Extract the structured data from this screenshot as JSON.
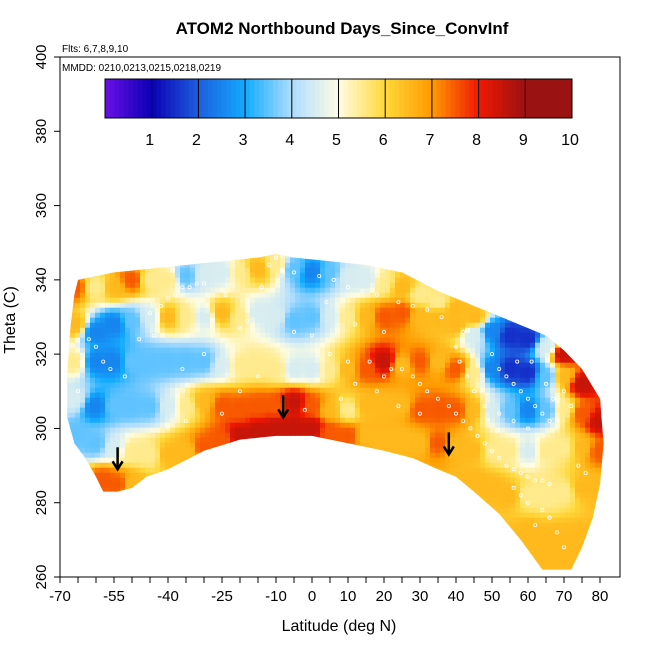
{
  "chart_data": {
    "type": "heatmap",
    "title": "ATOM2 Northbound Days_Since_ConvInf",
    "flights_note": "Flts: 6,7,8,9,10",
    "dates_note": "MMDD: 0210,0213,0215,0218,0219",
    "xlabel": "Latitude (deg N)",
    "ylabel": "Theta (C)",
    "xlim": [
      -70,
      80
    ],
    "ylim": [
      260,
      400
    ],
    "x_ticks": [
      -70,
      -55,
      -40,
      -25,
      -10,
      0,
      10,
      20,
      30,
      40,
      50,
      60,
      70,
      80
    ],
    "x_tick_labels": [
      "-70",
      "-55",
      "-40",
      "-25",
      "-10",
      "0",
      "10",
      "20",
      "30",
      "40",
      "50",
      "60",
      "70",
      "80"
    ],
    "x_minor_ticks": [
      -65,
      -60,
      -50,
      -45,
      -35,
      -30,
      -20,
      -15,
      -5,
      5,
      15,
      25,
      35,
      45,
      55,
      65,
      75
    ],
    "y_ticks": [
      260,
      280,
      300,
      320,
      340,
      360,
      380,
      400
    ],
    "y_tick_labels": [
      "260",
      "280",
      "300",
      "320",
      "340",
      "360",
      "380",
      "400"
    ],
    "colorbar": {
      "range": [
        0,
        10
      ],
      "ticks": [
        1,
        2,
        3,
        4,
        5,
        6,
        7,
        8,
        9,
        10
      ],
      "tick_labels": [
        "1",
        "2",
        "3",
        "4",
        "5",
        "6",
        "7",
        "8",
        "9",
        "10"
      ],
      "colors": [
        "#6a0fe6",
        "#0a00b4",
        "#1d5fde",
        "#12aaff",
        "#aedcff",
        "#fffde2",
        "#ffd83a",
        "#ff9a00",
        "#f01800",
        "#9b1212"
      ]
    },
    "arrows_latitude_theta": [
      [
        -54,
        289
      ],
      [
        -8,
        303
      ],
      [
        38,
        293
      ]
    ],
    "domain_outline": [
      [
        -65,
        340
      ],
      [
        -55,
        342
      ],
      [
        -45,
        343
      ],
      [
        -35,
        344
      ],
      [
        -25,
        345
      ],
      [
        -15,
        346
      ],
      [
        -10,
        347
      ],
      [
        -5,
        346
      ],
      [
        5,
        345
      ],
      [
        15,
        344
      ],
      [
        25,
        342
      ],
      [
        35,
        337
      ],
      [
        45,
        333
      ],
      [
        50,
        331
      ],
      [
        55,
        329
      ],
      [
        60,
        327
      ],
      [
        65,
        325
      ],
      [
        70,
        321
      ],
      [
        75,
        316
      ],
      [
        80,
        308
      ],
      [
        81,
        296
      ],
      [
        80,
        285
      ],
      [
        78,
        276
      ],
      [
        75,
        268
      ],
      [
        72,
        262
      ],
      [
        64,
        262
      ],
      [
        58,
        270
      ],
      [
        52,
        277
      ],
      [
        45,
        283
      ],
      [
        40,
        287
      ],
      [
        35,
        289
      ],
      [
        28,
        292
      ],
      [
        20,
        294
      ],
      [
        10,
        296
      ],
      [
        0,
        298
      ],
      [
        -10,
        298
      ],
      [
        -20,
        297
      ],
      [
        -30,
        294
      ],
      [
        -40,
        289
      ],
      [
        -46,
        287
      ],
      [
        -50,
        284
      ],
      [
        -54,
        283
      ],
      [
        -58,
        283
      ],
      [
        -60,
        287
      ],
      [
        -63,
        292
      ],
      [
        -66,
        296
      ],
      [
        -68,
        303
      ],
      [
        -68,
        315
      ],
      [
        -67,
        328
      ],
      [
        -66,
        336
      ]
    ],
    "value_field_nodes": [
      [
        -66,
        338,
        8
      ],
      [
        -60,
        338,
        6
      ],
      [
        -55,
        338,
        7
      ],
      [
        -50,
        340,
        8
      ],
      [
        -45,
        340,
        6
      ],
      [
        -40,
        340,
        6
      ],
      [
        -35,
        341,
        4
      ],
      [
        -30,
        341,
        5
      ],
      [
        -25,
        342,
        5
      ],
      [
        -20,
        342,
        6
      ],
      [
        -15,
        343,
        7
      ],
      [
        -10,
        344,
        6
      ],
      [
        -5,
        343,
        4
      ],
      [
        0,
        342,
        3
      ],
      [
        5,
        342,
        4
      ],
      [
        10,
        341,
        5
      ],
      [
        15,
        340,
        5
      ],
      [
        20,
        339,
        6
      ],
      [
        25,
        338,
        7
      ],
      [
        30,
        336,
        6
      ],
      [
        35,
        334,
        6
      ],
      [
        40,
        332,
        7
      ],
      [
        45,
        330,
        7
      ],
      [
        -66,
        328,
        7
      ],
      [
        -60,
        326,
        3
      ],
      [
        -55,
        328,
        3
      ],
      [
        -50,
        329,
        4
      ],
      [
        -45,
        330,
        5
      ],
      [
        -40,
        330,
        7
      ],
      [
        -35,
        330,
        6
      ],
      [
        -30,
        330,
        5
      ],
      [
        -25,
        331,
        7
      ],
      [
        -20,
        330,
        6
      ],
      [
        -15,
        331,
        5
      ],
      [
        -10,
        330,
        5
      ],
      [
        -5,
        329,
        4
      ],
      [
        0,
        330,
        4
      ],
      [
        5,
        330,
        5
      ],
      [
        10,
        330,
        6
      ],
      [
        15,
        330,
        7
      ],
      [
        20,
        330,
        8
      ],
      [
        25,
        331,
        8
      ],
      [
        30,
        330,
        7
      ],
      [
        35,
        330,
        7
      ],
      [
        40,
        328,
        7
      ],
      [
        45,
        325,
        5
      ],
      [
        50,
        326,
        3
      ],
      [
        55,
        325,
        2
      ],
      [
        60,
        324,
        2
      ],
      [
        65,
        322,
        5
      ],
      [
        70,
        320,
        9
      ],
      [
        -66,
        318,
        6
      ],
      [
        -60,
        318,
        3
      ],
      [
        -55,
        318,
        3
      ],
      [
        -50,
        318,
        4
      ],
      [
        -45,
        318,
        4
      ],
      [
        -40,
        318,
        4
      ],
      [
        -35,
        318,
        4
      ],
      [
        -30,
        318,
        4
      ],
      [
        -25,
        317,
        5
      ],
      [
        -20,
        317,
        6
      ],
      [
        -15,
        317,
        6
      ],
      [
        -10,
        316,
        6
      ],
      [
        -5,
        316,
        5
      ],
      [
        0,
        316,
        5
      ],
      [
        5,
        316,
        6
      ],
      [
        10,
        316,
        7
      ],
      [
        15,
        316,
        8
      ],
      [
        20,
        318,
        9
      ],
      [
        25,
        317,
        7
      ],
      [
        30,
        318,
        8
      ],
      [
        35,
        318,
        7
      ],
      [
        40,
        316,
        8
      ],
      [
        45,
        315,
        6
      ],
      [
        50,
        316,
        3
      ],
      [
        55,
        316,
        2
      ],
      [
        60,
        315,
        2
      ],
      [
        65,
        314,
        4
      ],
      [
        70,
        314,
        7
      ],
      [
        75,
        312,
        9
      ],
      [
        -66,
        308,
        5
      ],
      [
        -60,
        306,
        3
      ],
      [
        -55,
        306,
        4
      ],
      [
        -50,
        306,
        4
      ],
      [
        -45,
        306,
        4
      ],
      [
        -40,
        306,
        5
      ],
      [
        -35,
        306,
        6
      ],
      [
        -30,
        307,
        7
      ],
      [
        -25,
        306,
        8
      ],
      [
        -20,
        305,
        8
      ],
      [
        -15,
        306,
        8
      ],
      [
        -10,
        306,
        8
      ],
      [
        -5,
        307,
        9
      ],
      [
        0,
        306,
        8
      ],
      [
        5,
        305,
        7
      ],
      [
        10,
        305,
        6
      ],
      [
        15,
        306,
        7
      ],
      [
        20,
        306,
        7
      ],
      [
        25,
        306,
        7
      ],
      [
        30,
        305,
        8
      ],
      [
        35,
        305,
        8
      ],
      [
        40,
        305,
        8
      ],
      [
        45,
        305,
        7
      ],
      [
        50,
        305,
        5
      ],
      [
        55,
        305,
        4
      ],
      [
        60,
        305,
        3
      ],
      [
        65,
        305,
        4
      ],
      [
        70,
        305,
        6
      ],
      [
        75,
        304,
        8
      ],
      [
        80,
        302,
        9
      ],
      [
        -66,
        298,
        4
      ],
      [
        -60,
        296,
        4
      ],
      [
        -55,
        295,
        5
      ],
      [
        -50,
        294,
        6
      ],
      [
        -45,
        293,
        6
      ],
      [
        -40,
        293,
        7
      ],
      [
        -35,
        294,
        7
      ],
      [
        -30,
        295,
        8
      ],
      [
        -25,
        297,
        8
      ],
      [
        -20,
        298,
        9
      ],
      [
        -15,
        299,
        9
      ],
      [
        -10,
        300,
        9
      ],
      [
        -5,
        300,
        9
      ],
      [
        0,
        300,
        9
      ],
      [
        5,
        299,
        8
      ],
      [
        10,
        298,
        8
      ],
      [
        15,
        298,
        7
      ],
      [
        20,
        297,
        7
      ],
      [
        25,
        297,
        7
      ],
      [
        30,
        296,
        7
      ],
      [
        35,
        296,
        8
      ],
      [
        40,
        295,
        7
      ],
      [
        45,
        294,
        7
      ],
      [
        50,
        294,
        6
      ],
      [
        55,
        294,
        6
      ],
      [
        60,
        294,
        5
      ],
      [
        65,
        294,
        6
      ],
      [
        70,
        295,
        6
      ],
      [
        75,
        295,
        7
      ],
      [
        80,
        294,
        8
      ],
      [
        -58,
        286,
        8
      ],
      [
        -54,
        285,
        8
      ],
      [
        -50,
        285,
        7
      ],
      [
        45,
        286,
        7
      ],
      [
        50,
        284,
        7
      ],
      [
        55,
        282,
        7
      ],
      [
        60,
        282,
        6
      ],
      [
        65,
        282,
        6
      ],
      [
        70,
        283,
        6
      ],
      [
        75,
        284,
        7
      ],
      [
        79,
        284,
        7
      ],
      [
        60,
        272,
        7
      ],
      [
        65,
        270,
        7
      ],
      [
        70,
        270,
        7
      ],
      [
        75,
        270,
        7
      ],
      [
        66,
        264,
        7
      ],
      [
        72,
        264,
        7
      ]
    ],
    "flight_samples": [
      [
        -45,
        331
      ],
      [
        -42,
        333
      ],
      [
        -40,
        335
      ],
      [
        -38,
        336
      ],
      [
        -36,
        338
      ],
      [
        -34,
        338
      ],
      [
        -32,
        339
      ],
      [
        -30,
        339
      ],
      [
        -60,
        322
      ],
      [
        -58,
        318
      ],
      [
        -56,
        316
      ],
      [
        -52,
        314
      ],
      [
        -48,
        324
      ],
      [
        -44,
        325
      ],
      [
        -10,
        346
      ],
      [
        -12,
        344
      ],
      [
        -8,
        342
      ],
      [
        -5,
        342
      ],
      [
        2,
        341
      ],
      [
        6,
        340
      ],
      [
        10,
        338
      ],
      [
        14,
        337
      ],
      [
        18,
        336
      ],
      [
        -18,
        329
      ],
      [
        -20,
        327
      ],
      [
        -5,
        326
      ],
      [
        0,
        325
      ],
      [
        5,
        320
      ],
      [
        10,
        318
      ],
      [
        16,
        318
      ],
      [
        20,
        314
      ],
      [
        22,
        316
      ],
      [
        25,
        316
      ],
      [
        28,
        314
      ],
      [
        30,
        312
      ],
      [
        32,
        310
      ],
      [
        35,
        308
      ],
      [
        38,
        306
      ],
      [
        40,
        304
      ],
      [
        42,
        302
      ],
      [
        44,
        300
      ],
      [
        46,
        298
      ],
      [
        48,
        296
      ],
      [
        50,
        294
      ],
      [
        52,
        292
      ],
      [
        54,
        290
      ],
      [
        56,
        289
      ],
      [
        58,
        288
      ],
      [
        60,
        287
      ],
      [
        62,
        286
      ],
      [
        64,
        286
      ],
      [
        66,
        285
      ],
      [
        50,
        320
      ],
      [
        52,
        316
      ],
      [
        54,
        314
      ],
      [
        56,
        312
      ],
      [
        58,
        310
      ],
      [
        60,
        308
      ],
      [
        62,
        306
      ],
      [
        64,
        304
      ],
      [
        66,
        302
      ],
      [
        68,
        300
      ],
      [
        57,
        318
      ],
      [
        61,
        318
      ],
      [
        65,
        312
      ],
      [
        67,
        308
      ],
      [
        70,
        310
      ],
      [
        72,
        306
      ],
      [
        60,
        300
      ],
      [
        56,
        302
      ],
      [
        52,
        304
      ],
      [
        48,
        306
      ],
      [
        45,
        310
      ],
      [
        43,
        314
      ],
      [
        41,
        318
      ],
      [
        40,
        322
      ],
      [
        42,
        326
      ],
      [
        36,
        330
      ],
      [
        32,
        332
      ],
      [
        28,
        333
      ],
      [
        24,
        334
      ],
      [
        -62,
        324
      ],
      [
        -64,
        318
      ],
      [
        -65,
        310
      ],
      [
        64,
        278
      ],
      [
        66,
        276
      ],
      [
        68,
        272
      ],
      [
        70,
        268
      ],
      [
        62,
        274
      ],
      [
        60,
        280
      ],
      [
        58,
        282
      ],
      [
        56,
        284
      ],
      [
        74,
        290
      ],
      [
        76,
        288
      ],
      [
        -2,
        305
      ],
      [
        8,
        308
      ],
      [
        12,
        312
      ],
      [
        18,
        310
      ],
      [
        24,
        306
      ],
      [
        30,
        304
      ],
      [
        -40,
        300
      ],
      [
        -35,
        302
      ],
      [
        -25,
        304
      ],
      [
        -20,
        310
      ],
      [
        -15,
        314
      ],
      [
        -30,
        320
      ],
      [
        -36,
        316
      ],
      [
        -24,
        336
      ],
      [
        -14,
        338
      ],
      [
        4,
        334
      ],
      [
        12,
        328
      ],
      [
        20,
        326
      ]
    ]
  }
}
